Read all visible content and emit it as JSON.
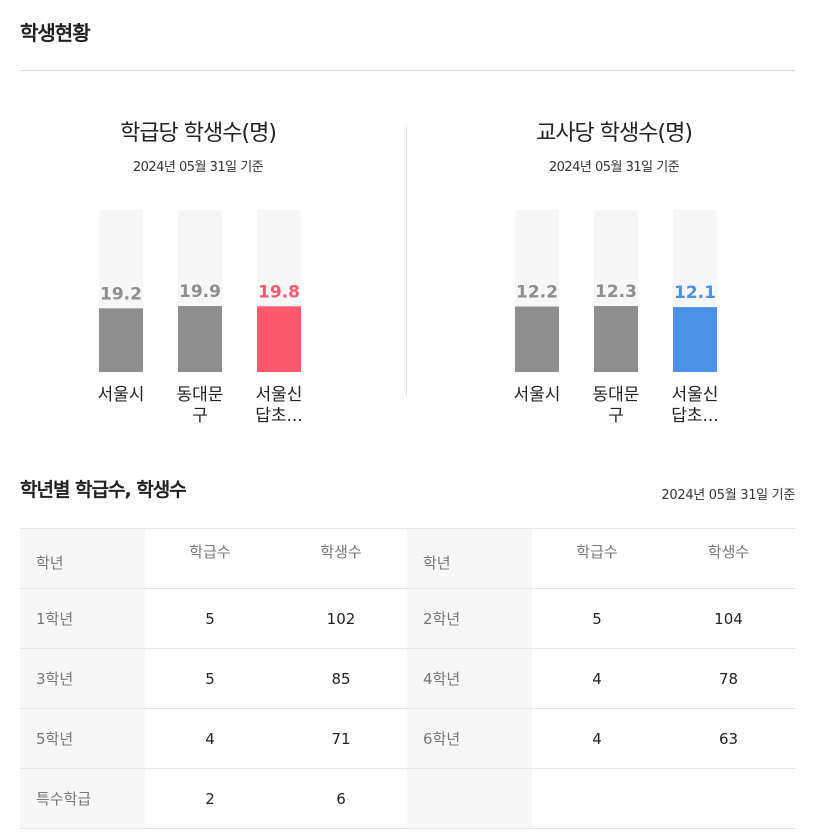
{
  "page": {
    "title": "학생현황"
  },
  "charts_section": {
    "left": {
      "title": "학급당 학생수(명)",
      "subtitle": "2024년 05월 31일 기준"
    },
    "right": {
      "title": "교사당 학생수(명)",
      "subtitle": "2024년 05월 31일 기준"
    }
  },
  "chart_data": [
    {
      "type": "bar",
      "title": "학급당 학생수(명)",
      "subtitle": "2024년 05월 31일 기준",
      "categories": [
        [
          "서울시"
        ],
        [
          "동대문",
          "구"
        ],
        [
          "서울신",
          "답초..."
        ]
      ],
      "values": [
        19.2,
        19.9,
        19.8
      ],
      "value_labels": [
        "19.2",
        "19.9",
        "19.8"
      ],
      "bar_colors": [
        "#8e8e8e",
        "#8e8e8e",
        "#fb5a6e"
      ],
      "label_colors": [
        "#8e8e8e",
        "#8e8e8e",
        "#fb5a6e"
      ],
      "track_color": "#f7f7f7",
      "grid": false
    },
    {
      "type": "bar",
      "title": "교사당 학생수(명)",
      "subtitle": "2024년 05월 31일 기준",
      "categories": [
        [
          "서울시"
        ],
        [
          "동대문",
          "구"
        ],
        [
          "서울신",
          "답초..."
        ]
      ],
      "values": [
        12.2,
        12.3,
        12.1
      ],
      "value_labels": [
        "12.2",
        "12.3",
        "12.1"
      ],
      "bar_colors": [
        "#8e8e8e",
        "#8e8e8e",
        "#4b91e8"
      ],
      "label_colors": [
        "#8e8e8e",
        "#8e8e8e",
        "#4b91e8"
      ],
      "track_color": "#f7f7f7",
      "grid": false
    }
  ],
  "grade_section": {
    "title": "학년별 학급수, 학생수",
    "note": "2024년 05월 31일 기준",
    "headers": {
      "grade": "학년",
      "classes": "학급수",
      "students": "학생수"
    },
    "rows": [
      [
        {
          "grade": "1학년",
          "classes": "5",
          "students": "102"
        },
        {
          "grade": "2학년",
          "classes": "5",
          "students": "104"
        }
      ],
      [
        {
          "grade": "3학년",
          "classes": "5",
          "students": "85"
        },
        {
          "grade": "4학년",
          "classes": "4",
          "students": "78"
        }
      ],
      [
        {
          "grade": "5학년",
          "classes": "4",
          "students": "71"
        },
        {
          "grade": "6학년",
          "classes": "4",
          "students": "63"
        }
      ],
      [
        {
          "grade": "특수학급",
          "classes": "2",
          "students": "6"
        },
        {
          "grade": "",
          "classes": "",
          "students": ""
        }
      ]
    ]
  }
}
